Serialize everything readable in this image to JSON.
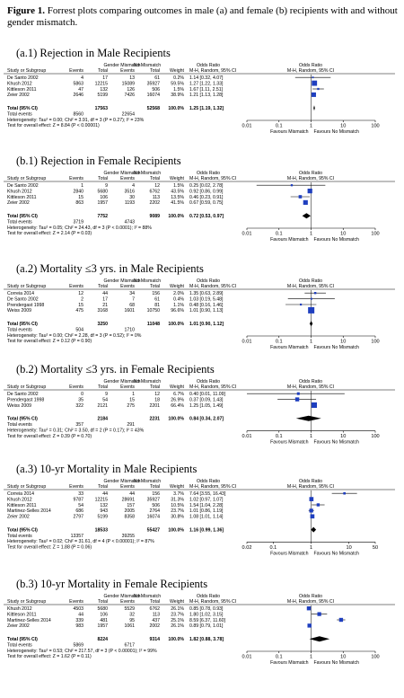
{
  "caption": {
    "label": "Figure 1.",
    "text": " Forrest plots comparing outcomes in male (a) and female (b) recipients with and without gender mismatch."
  },
  "col_labels": {
    "group1": "Gender Mismatch",
    "group2": "No Mismatch",
    "or_title": "Odds Ratio",
    "study": "Study or Subgroup",
    "events": "Events",
    "total": "Total",
    "weight": "Weight",
    "method": "M-H, Random, 95% CI",
    "total_label": "Total (95% CI)",
    "total_events_label": "Total events"
  },
  "plots": [
    {
      "id": "a1",
      "title": "(a.1)  Rejection in Male Recipients",
      "axis": [
        "0.01",
        "0.1",
        "1",
        "10",
        "100"
      ],
      "favours_left": "Favours Mismatch",
      "favours_right": "Favours No Mismatch",
      "studies": [
        {
          "name": "De Santo 2002",
          "e1": "4",
          "t1": "17",
          "e2": "13",
          "t2": "61",
          "w": "0.2%",
          "ci": "1.14 [0.32, 4.07]",
          "or": 1.14,
          "lo": 0.32,
          "hi": 4.07,
          "wv": 0.2
        },
        {
          "name": "Khush 2012",
          "e1": "5863",
          "t1": "12215",
          "e2": "15089",
          "t2": "35927",
          "w": "59.5%",
          "ci": "1.27 [1.22, 1.33]",
          "or": 1.27,
          "lo": 1.22,
          "hi": 1.33,
          "wv": 59.5
        },
        {
          "name": "Kittleson 2011",
          "e1": "47",
          "t1": "132",
          "e2": "126",
          "t2": "506",
          "w": "1.5%",
          "ci": "1.67 [1.11, 2.51]",
          "or": 1.67,
          "lo": 1.11,
          "hi": 2.51,
          "wv": 1.5
        },
        {
          "name": "Zeier 2002",
          "e1": "2646",
          "t1": "5199",
          "e2": "7426",
          "t2": "16074",
          "w": "38.9%",
          "ci": "1.21 [1.13, 1.28]",
          "or": 1.21,
          "lo": 1.13,
          "hi": 1.28,
          "wv": 38.9
        }
      ],
      "total": {
        "t1": "17563",
        "t2": "52568",
        "w": "100.0%",
        "ci": "1.25 [1.19, 1.32]",
        "or": 1.25,
        "lo": 1.19,
        "hi": 1.32
      },
      "events": {
        "e1": "8560",
        "e2": "22654"
      },
      "het": "Heterogeneity: Tau² = 0.00; Chi² = 3.91, df = 3 (P = 0.27); I² = 23%",
      "eff": "Test for overall effect: Z = 8.84 (P < 0.00001)"
    },
    {
      "id": "b1",
      "title": "(b.1)  Rejection in Female Recipients",
      "axis": [
        "0.01",
        "0.1",
        "1",
        "10",
        "100"
      ],
      "favours_left": "Favours Mismatch",
      "favours_right": "Favours No Mismatch",
      "studies": [
        {
          "name": "De Santo 2002",
          "e1": "1",
          "t1": "9",
          "e2": "4",
          "t2": "12",
          "w": "1.5%",
          "ci": "0.25 [0.02, 2.78]",
          "or": 0.25,
          "lo": 0.02,
          "hi": 2.78,
          "wv": 1.5
        },
        {
          "name": "Khush 2012",
          "e1": "2840",
          "t1": "5680",
          "e2": "3516",
          "t2": "6762",
          "w": "43.5%",
          "ci": "0.92 [0.86, 0.99]",
          "or": 0.92,
          "lo": 0.86,
          "hi": 0.99,
          "wv": 43.5
        },
        {
          "name": "Kittleson 2011",
          "e1": "15",
          "t1": "106",
          "e2": "30",
          "t2": "113",
          "w": "13.5%",
          "ci": "0.46 [0.23, 0.91]",
          "or": 0.46,
          "lo": 0.23,
          "hi": 0.91,
          "wv": 13.5
        },
        {
          "name": "Zeier 2002",
          "e1": "863",
          "t1": "1957",
          "e2": "1193",
          "t2": "2202",
          "w": "41.5%",
          "ci": "0.67 [0.59, 0.75]",
          "or": 0.67,
          "lo": 0.59,
          "hi": 0.75,
          "wv": 41.5
        }
      ],
      "total": {
        "t1": "7752",
        "t2": "9089",
        "w": "100.0%",
        "ci": "0.72 [0.53, 0.97]",
        "or": 0.72,
        "lo": 0.53,
        "hi": 0.97
      },
      "events": {
        "e1": "3719",
        "e2": "4743"
      },
      "het": "Heterogeneity: Tau² = 0.05; Chi² = 24.43, df = 3 (P < 0.0001); I² = 88%",
      "eff": "Test for overall effect: Z = 2.14 (P = 0.03)"
    },
    {
      "id": "a2",
      "title": "(a.2)  Mortality ≤3 yrs. in Male Recipients",
      "axis": [
        "0.01",
        "0.1",
        "1",
        "10",
        "100"
      ],
      "favours_left": "Favours Mismatch",
      "favours_right": "Favours No Mismatch",
      "studies": [
        {
          "name": "Correia 2014",
          "e1": "12",
          "t1": "44",
          "e2": "34",
          "t2": "156",
          "w": "2.0%",
          "ci": "1.35 [0.63, 2.89]",
          "or": 1.35,
          "lo": 0.63,
          "hi": 2.89,
          "wv": 2.0
        },
        {
          "name": "De Santo 2002",
          "e1": "2",
          "t1": "17",
          "e2": "7",
          "t2": "61",
          "w": "0.4%",
          "ci": "1.03 [0.19, 5.48]",
          "or": 1.03,
          "lo": 0.19,
          "hi": 5.48,
          "wv": 0.4
        },
        {
          "name": "Prendergast 1998",
          "e1": "15",
          "t1": "21",
          "e2": "68",
          "t2": "81",
          "w": "1.1%",
          "ci": "0.48 [0.16, 1.46]",
          "or": 0.48,
          "lo": 0.16,
          "hi": 1.46,
          "wv": 1.1
        },
        {
          "name": "Weiss 2009",
          "e1": "475",
          "t1": "3168",
          "e2": "1601",
          "t2": "10750",
          "w": "96.6%",
          "ci": "1.01 [0.90, 1.13]",
          "or": 1.01,
          "lo": 0.9,
          "hi": 1.13,
          "wv": 96.6
        }
      ],
      "total": {
        "t1": "3250",
        "t2": "11048",
        "w": "100.0%",
        "ci": "1.01 [0.90, 1.12]",
        "or": 1.01,
        "lo": 0.9,
        "hi": 1.12
      },
      "events": {
        "e1": "504",
        "e2": "1710"
      },
      "het": "Heterogeneity: Tau² = 0.00; Chi² = 2.28, df = 3 (P = 0.52); I² = 0%",
      "eff": "Test for overall effect: Z = 0.12 (P = 0.90)"
    },
    {
      "id": "b2",
      "title": "(b.2)  Mortality ≤3 yrs. in Female Recipients",
      "axis": [
        "0.01",
        "0.1",
        "1",
        "10",
        "100"
      ],
      "favours_left": "Favours Mismatch",
      "favours_right": "Favours No Mismatch",
      "studies": [
        {
          "name": "De Santo 2002",
          "e1": "0",
          "t1": "9",
          "e2": "1",
          "t2": "12",
          "w": "6.7%",
          "ci": "0.40 [0.01, 11.09]",
          "or": 0.4,
          "lo": 0.01,
          "hi": 11.09,
          "wv": 6.7
        },
        {
          "name": "Prendergast 1998",
          "e1": "35",
          "t1": "54",
          "e2": "15",
          "t2": "18",
          "w": "26.9%",
          "ci": "0.37 [0.09, 1.43]",
          "or": 0.37,
          "lo": 0.09,
          "hi": 1.43,
          "wv": 26.9
        },
        {
          "name": "Weiss 2009",
          "e1": "322",
          "t1": "2121",
          "e2": "275",
          "t2": "2201",
          "w": "66.4%",
          "ci": "1.25 [1.05, 1.49]",
          "or": 1.25,
          "lo": 1.05,
          "hi": 1.49,
          "wv": 66.4
        }
      ],
      "total": {
        "t1": "2184",
        "t2": "2231",
        "w": "100.0%",
        "ci": "0.84 [0.34, 2.07]",
        "or": 0.84,
        "lo": 0.34,
        "hi": 2.07
      },
      "events": {
        "e1": "357",
        "e2": "291"
      },
      "het": "Heterogeneity: Tau² = 0.31; Chi² = 3.50, df = 2 (P = 0.17); I² = 43%",
      "eff": "Test for overall effect: Z = 0.39 (P = 0.70)"
    },
    {
      "id": "a3",
      "title": "(a.3)  10-yr Mortality in Male Recipients",
      "axis": [
        "0.02",
        "0.1",
        "1",
        "10",
        "50"
      ],
      "favours_left": "Favours Mismatch",
      "favours_right": "Favours No Mismatch",
      "studies": [
        {
          "name": "Correia 2014",
          "e1": "33",
          "t1": "44",
          "e2": "44",
          "t2": "156",
          "w": "3.7%",
          "ci": "7.64 [3.55, 16.43]",
          "or": 7.64,
          "lo": 3.55,
          "hi": 16.43,
          "wv": 3.7
        },
        {
          "name": "Khush 2012",
          "e1": "9787",
          "t1": "12215",
          "e2": "28691",
          "t2": "35927",
          "w": "31.3%",
          "ci": "1.02 [0.97, 1.07]",
          "or": 1.02,
          "lo": 0.97,
          "hi": 1.07,
          "wv": 31.3
        },
        {
          "name": "Kittleson 2011",
          "e1": "54",
          "t1": "132",
          "e2": "157",
          "t2": "506",
          "w": "10.5%",
          "ci": "1.54 [1.04, 2.28]",
          "or": 1.54,
          "lo": 1.04,
          "hi": 2.28,
          "wv": 10.5
        },
        {
          "name": "Martinez-Selles 2014",
          "e1": "686",
          "t1": "943",
          "e2": "2005",
          "t2": "2764",
          "w": "23.7%",
          "ci": "1.01 [0.86, 1.19]",
          "or": 1.01,
          "lo": 0.86,
          "hi": 1.19,
          "wv": 23.7
        },
        {
          "name": "Zeier 2002",
          "e1": "2797",
          "t1": "5199",
          "e2": "8358",
          "t2": "16074",
          "w": "30.8%",
          "ci": "1.08 [1.01, 1.14]",
          "or": 1.08,
          "lo": 1.01,
          "hi": 1.14,
          "wv": 30.8
        }
      ],
      "total": {
        "t1": "18533",
        "t2": "55427",
        "w": "100.0%",
        "ci": "1.16 [0.99, 1.36]",
        "or": 1.16,
        "lo": 0.99,
        "hi": 1.36
      },
      "events": {
        "e1": "13357",
        "e2": "39255"
      },
      "het": "Heterogeneity: Tau² = 0.02; Chi² = 31.61, df = 4 (P < 0.00001); I² = 87%",
      "eff": "Test for overall effect: Z = 1.88 (P = 0.06)"
    },
    {
      "id": "b3",
      "title": "(b.3)  10-yr Mortality in Female Recipients",
      "axis": [
        "0.01",
        "0.1",
        "1",
        "10",
        "100"
      ],
      "favours_left": "Favours Mismatch",
      "favours_right": "Favours No Mismatch",
      "studies": [
        {
          "name": "Khush 2012",
          "e1": "4503",
          "t1": "5680",
          "e2": "5529",
          "t2": "6762",
          "w": "26.1%",
          "ci": "0.85 [0.78, 0.93]",
          "or": 0.85,
          "lo": 0.78,
          "hi": 0.93,
          "wv": 26.1
        },
        {
          "name": "Kittleson 2011",
          "e1": "44",
          "t1": "106",
          "e2": "32",
          "t2": "113",
          "w": "23.7%",
          "ci": "1.80 [1.02, 3.15]",
          "or": 1.8,
          "lo": 1.02,
          "hi": 3.15,
          "wv": 23.7
        },
        {
          "name": "Martinez-Selles 2014",
          "e1": "339",
          "t1": "481",
          "e2": "95",
          "t2": "437",
          "w": "25.1%",
          "ci": "8.59 [6.37, 11.60]",
          "or": 8.59,
          "lo": 6.37,
          "hi": 11.6,
          "wv": 25.1
        },
        {
          "name": "Zeier 2002",
          "e1": "983",
          "t1": "1957",
          "e2": "1061",
          "t2": "2002",
          "w": "26.1%",
          "ci": "0.89 [0.79, 1.01]",
          "or": 0.89,
          "lo": 0.79,
          "hi": 1.01,
          "wv": 26.1
        }
      ],
      "total": {
        "t1": "8224",
        "t2": "9314",
        "w": "100.0%",
        "ci": "1.82 [0.88, 3.78]",
        "or": 1.82,
        "lo": 0.88,
        "hi": 3.78
      },
      "events": {
        "e1": "5869",
        "e2": "6717"
      },
      "het": "Heterogeneity: Tau² = 0.53; Chi² = 217.57, df = 3 (P < 0.00001); I² = 99%",
      "eff": "Test for overall effect: Z = 1.62 (P = 0.11)"
    }
  ]
}
